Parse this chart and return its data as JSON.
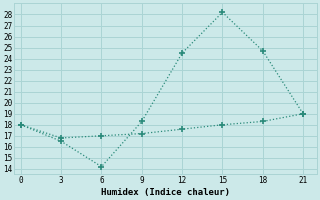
{
  "title": "",
  "xlabel": "Humidex (Indice chaleur)",
  "ylabel": "",
  "background_color": "#cce9e9",
  "grid_color": "#aad4d4",
  "line1_x": [
    0,
    3,
    6,
    9,
    12,
    15,
    18,
    21
  ],
  "line1_y": [
    18.0,
    16.5,
    14.2,
    18.3,
    24.5,
    28.2,
    24.7,
    19.0
  ],
  "line2_x": [
    0,
    3,
    6,
    9,
    12,
    15,
    18,
    21
  ],
  "line2_y": [
    18.0,
    16.8,
    17.0,
    17.2,
    17.6,
    18.0,
    18.3,
    19.0
  ],
  "line_color": "#2a8a7a",
  "xlim": [
    -0.5,
    22
  ],
  "ylim": [
    13.5,
    29.0
  ],
  "xticks": [
    0,
    3,
    6,
    9,
    12,
    15,
    18,
    21
  ],
  "yticks": [
    14,
    15,
    16,
    17,
    18,
    19,
    20,
    21,
    22,
    23,
    24,
    25,
    26,
    27,
    28
  ],
  "marker": "+",
  "markersize": 5,
  "markeredgewidth": 1.2,
  "linewidth": 0.9,
  "linestyle": "dotted",
  "tick_fontsize": 5.5,
  "xlabel_fontsize": 6.5
}
